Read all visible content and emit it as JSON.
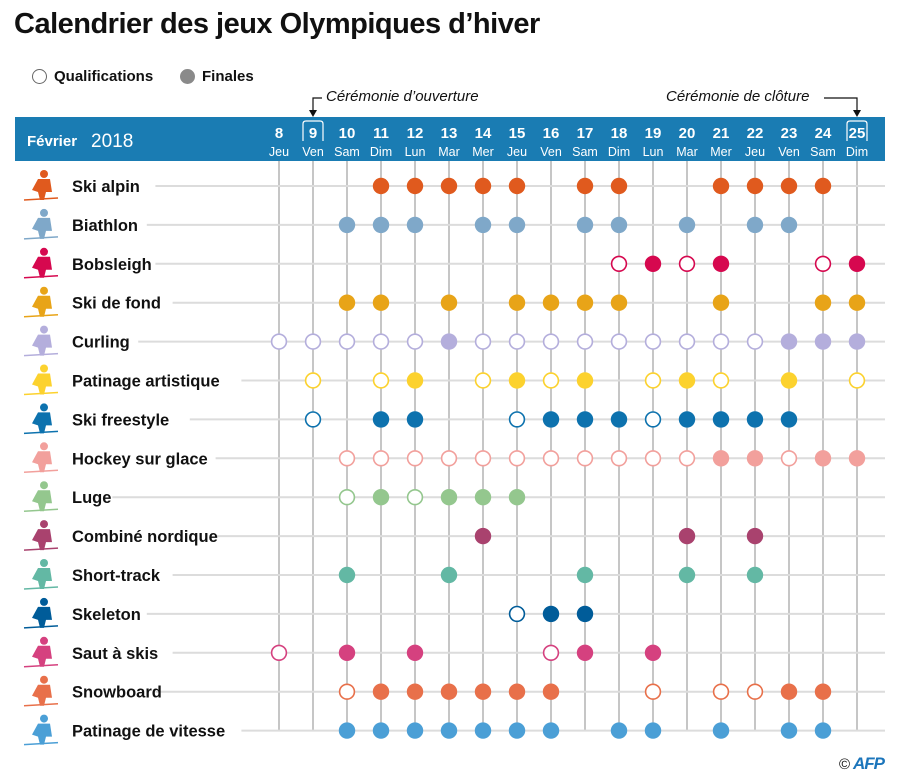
{
  "page": {
    "title": "Calendrier des jeux Olympiques d’hiver",
    "legend": {
      "qualifications": "Qualifications",
      "finales": "Finales"
    },
    "ceremonies": {
      "opening": "Cérémonie d’ouverture",
      "closing": "Cérémonie de clôture"
    },
    "header": {
      "month": "Février",
      "year": "2018",
      "band_color": "#1a7cb3"
    },
    "copyright": {
      "symbol": "©",
      "agency": "AFP"
    }
  },
  "chart_data": {
    "type": "table",
    "title": "Calendrier des jeux Olympiques d’hiver",
    "legend": [
      {
        "key": "Q",
        "label": "Qualifications",
        "style": "hollow"
      },
      {
        "key": "F",
        "label": "Finales",
        "style": "filled"
      }
    ],
    "month": "Février 2018",
    "days": [
      8,
      9,
      10,
      11,
      12,
      13,
      14,
      15,
      16,
      17,
      18,
      19,
      20,
      21,
      22,
      23,
      24,
      25
    ],
    "weekdays": [
      "Jeu",
      "Ven",
      "Sam",
      "Dim",
      "Lun",
      "Mar",
      "Mer",
      "Jeu",
      "Ven",
      "Sam",
      "Dim",
      "Lun",
      "Mar",
      "Mer",
      "Jeu",
      "Ven",
      "Sam",
      "Dim"
    ],
    "highlighted_days": [
      {
        "day": 9,
        "label": "Cérémonie d’ouverture"
      },
      {
        "day": 25,
        "label": "Cérémonie de clôture"
      }
    ],
    "sports": [
      {
        "name": "Ski alpin",
        "icon": "ski-alpin-icon",
        "color": "#e05a1e",
        "schedule": {
          "11": "F",
          "12": "F",
          "13": "F",
          "14": "F",
          "15": "F",
          "17": "F",
          "18": "F",
          "21": "F",
          "22": "F",
          "23": "F",
          "24": "F"
        }
      },
      {
        "name": "Biathlon",
        "icon": "biathlon-icon",
        "color": "#7fa8c9",
        "schedule": {
          "10": "F",
          "11": "F",
          "12": "F",
          "14": "F",
          "15": "F",
          "17": "F",
          "18": "F",
          "20": "F",
          "22": "F",
          "23": "F"
        }
      },
      {
        "name": "Bobsleigh",
        "icon": "bobsleigh-icon",
        "color": "#d6084f",
        "schedule": {
          "18": "Q",
          "19": "F",
          "20": "Q",
          "21": "F",
          "24": "Q",
          "25": "F"
        }
      },
      {
        "name": "Ski de fond",
        "icon": "ski-de-fond-icon",
        "color": "#e8a418",
        "schedule": {
          "10": "F",
          "11": "F",
          "13": "F",
          "15": "F",
          "16": "F",
          "17": "F",
          "18": "F",
          "21": "F",
          "24": "F",
          "25": "F"
        }
      },
      {
        "name": "Curling",
        "icon": "curling-icon",
        "color": "#b4aedc",
        "schedule": {
          "8": "Q",
          "9": "Q",
          "10": "Q",
          "11": "Q",
          "12": "Q",
          "13": "F",
          "14": "Q",
          "15": "Q",
          "16": "Q",
          "17": "Q",
          "18": "Q",
          "19": "Q",
          "20": "Q",
          "21": "Q",
          "22": "Q",
          "23": "F",
          "24": "F",
          "25": "F"
        }
      },
      {
        "name": "Patinage artistique",
        "icon": "patinage-artistique-icon",
        "color": "#fcd22e",
        "schedule": {
          "9": "Q",
          "11": "Q",
          "12": "F",
          "14": "Q",
          "15": "F",
          "16": "Q",
          "17": "F",
          "19": "Q",
          "20": "F",
          "21": "Q",
          "23": "F",
          "25": "Q"
        }
      },
      {
        "name": "Ski freestyle",
        "icon": "ski-freestyle-icon",
        "color": "#0d72ae",
        "schedule": {
          "9": "Q",
          "11": "F",
          "12": "F",
          "15": "Q",
          "16": "F",
          "17": "F",
          "18": "F",
          "19": "Q",
          "20": "F",
          "21": "F",
          "22": "F",
          "23": "F"
        }
      },
      {
        "name": "Hockey sur glace",
        "icon": "hockey-icon",
        "color": "#f2a09c",
        "schedule": {
          "10": "Q",
          "11": "Q",
          "12": "Q",
          "13": "Q",
          "14": "Q",
          "15": "Q",
          "16": "Q",
          "17": "Q",
          "18": "Q",
          "19": "Q",
          "20": "Q",
          "21": "F",
          "22": "F",
          "23": "Q",
          "24": "F",
          "25": "F"
        }
      },
      {
        "name": "Luge",
        "icon": "luge-icon",
        "color": "#94c78e",
        "schedule": {
          "10": "Q",
          "11": "F",
          "12": "Q",
          "13": "F",
          "14": "F",
          "15": "F"
        }
      },
      {
        "name": "Combiné nordique",
        "icon": "combine-nordique-icon",
        "color": "#a9426e",
        "schedule": {
          "14": "F",
          "20": "F",
          "22": "F"
        }
      },
      {
        "name": "Short-track",
        "icon": "short-track-icon",
        "color": "#63b8a4",
        "schedule": {
          "10": "F",
          "13": "F",
          "17": "F",
          "20": "F",
          "22": "F"
        }
      },
      {
        "name": "Skeleton",
        "icon": "skeleton-icon",
        "color": "#005c99",
        "schedule": {
          "15": "Q",
          "16": "F",
          "17": "F"
        }
      },
      {
        "name": "Saut à skis",
        "icon": "saut-a-skis-icon",
        "color": "#d5417f",
        "schedule": {
          "8": "Q",
          "10": "F",
          "12": "F",
          "16": "Q",
          "17": "F",
          "19": "F"
        }
      },
      {
        "name": "Snowboard",
        "icon": "snowboard-icon",
        "color": "#e8704a",
        "schedule": {
          "10": "Q",
          "11": "F",
          "12": "F",
          "13": "F",
          "14": "F",
          "15": "F",
          "16": "F",
          "19": "Q",
          "21": "Q",
          "22": "Q",
          "23": "F",
          "24": "F"
        }
      },
      {
        "name": "Patinage de vitesse",
        "icon": "patinage-de-vitesse-icon",
        "color": "#4b9fd6",
        "schedule": {
          "10": "F",
          "11": "F",
          "12": "F",
          "13": "F",
          "14": "F",
          "15": "F",
          "16": "F",
          "18": "F",
          "19": "F",
          "21": "F",
          "23": "F",
          "24": "F"
        }
      }
    ]
  }
}
